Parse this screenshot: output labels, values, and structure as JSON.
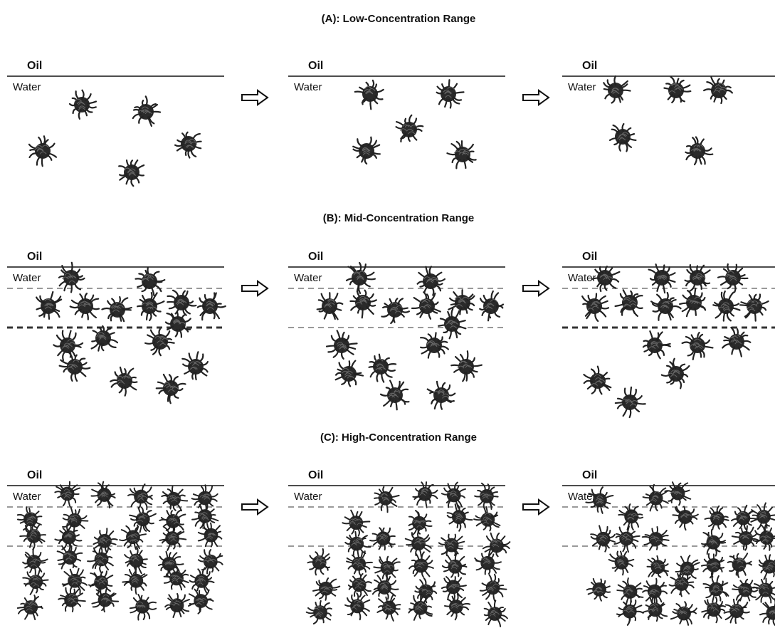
{
  "sections": [
    {
      "title": "(A): Low-Concentration Range",
      "panels": [
        {
          "oil": "Oil",
          "water": "Water"
        },
        {
          "oil": "Oil",
          "water": "Water"
        },
        {
          "oil": "Oil",
          "water": "Water"
        }
      ]
    },
    {
      "title": "(B): Mid-Concentration Range",
      "panels": [
        {
          "oil": "Oil",
          "water": "Water"
        },
        {
          "oil": "Oil",
          "water": "Water"
        },
        {
          "oil": "Oil",
          "water": "Water"
        }
      ]
    },
    {
      "title": "(C): High-Concentration Range",
      "panels": [
        {
          "oil": "Oil",
          "water": "Water"
        },
        {
          "oil": "Oil",
          "water": "Water"
        },
        {
          "oil": "Oil",
          "water": "Water"
        }
      ]
    }
  ]
}
